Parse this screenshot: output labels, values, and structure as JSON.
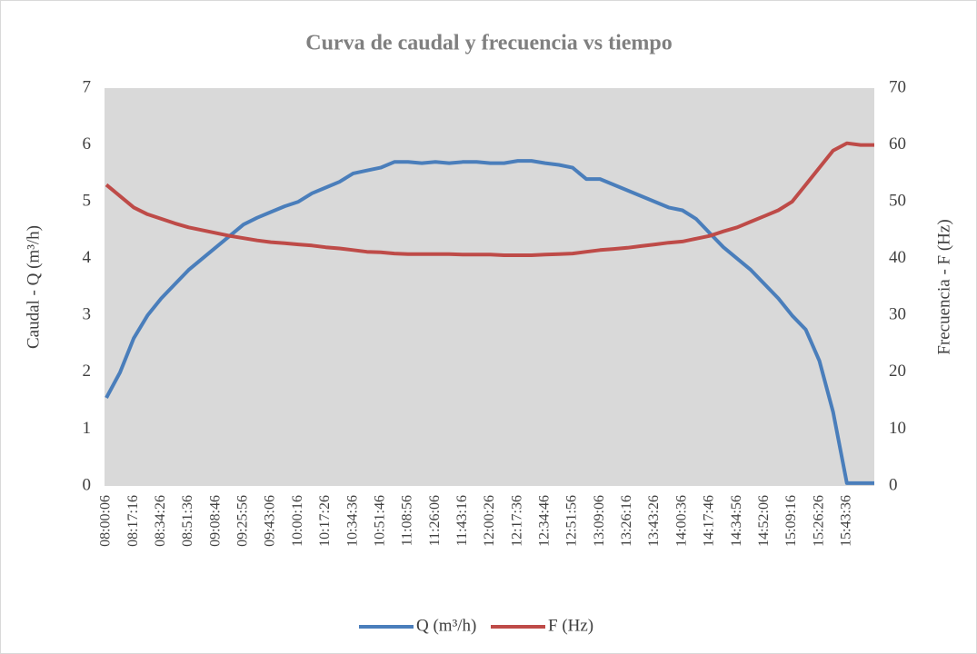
{
  "chart_data": {
    "type": "line",
    "title": "Curva de caudal  y frecuencia vs tiempo",
    "y_label": "Caudal - Q (m³/h)",
    "y2_label": "Frecuencia - F (Hz)",
    "categories": [
      "08:00:06",
      null,
      "08:17:16",
      null,
      "08:34:26",
      null,
      "08:51:36",
      null,
      "09:08:46",
      null,
      "09:25:56",
      null,
      "09:43:06",
      null,
      "10:00:16",
      null,
      "10:17:26",
      null,
      "10:34:36",
      null,
      "10:51:46",
      null,
      "11:08:56",
      null,
      "11:26:06",
      null,
      "11:43:16",
      null,
      "12:00:26",
      null,
      "12:17:36",
      null,
      "12:34:46",
      null,
      "12:51:56",
      null,
      "13:09:06",
      null,
      "13:26:16",
      null,
      "13:43:26",
      null,
      "14:00:36",
      null,
      "14:17:46",
      null,
      "14:34:56",
      null,
      "14:52:06",
      null,
      "15:09:16",
      null,
      "15:26:26",
      null,
      "15:43:36",
      null,
      null
    ],
    "series": [
      {
        "name": "Q (m³/h)",
        "color": "#4a7ebb",
        "values": [
          1.55,
          2.0,
          2.6,
          3.0,
          3.3,
          3.55,
          3.8,
          4.0,
          4.2,
          4.4,
          4.6,
          4.72,
          4.82,
          4.92,
          5.0,
          5.15,
          5.25,
          5.35,
          5.5,
          5.55,
          5.6,
          5.7,
          5.7,
          5.68,
          5.7,
          5.68,
          5.7,
          5.7,
          5.68,
          5.68,
          5.72,
          5.72,
          5.68,
          5.65,
          5.6,
          5.4,
          5.4,
          5.3,
          5.2,
          5.1,
          5.0,
          4.9,
          4.85,
          4.7,
          4.45,
          4.2,
          4.0,
          3.8,
          3.55,
          3.3,
          3.0,
          2.75,
          2.2,
          1.3,
          0.05,
          0.05,
          0.05
        ]
      },
      {
        "name": "F (Hz)",
        "color": "#be4b48",
        "axis": "y2",
        "values": [
          53,
          51,
          49,
          47.8,
          47,
          46.2,
          45.5,
          45,
          44.5,
          44,
          43.6,
          43.2,
          42.9,
          42.7,
          42.5,
          42.3,
          42,
          41.8,
          41.5,
          41.2,
          41.1,
          40.9,
          40.8,
          40.8,
          40.8,
          40.8,
          40.7,
          40.7,
          40.7,
          40.6,
          40.6,
          40.6,
          40.7,
          40.8,
          40.9,
          41.2,
          41.5,
          41.7,
          41.9,
          42.2,
          42.5,
          42.8,
          43,
          43.5,
          44,
          44.8,
          45.5,
          46.5,
          47.5,
          48.5,
          50,
          53,
          56,
          59,
          60.3,
          60,
          60
        ]
      }
    ],
    "ylim": [
      0,
      7
    ],
    "yticks": [
      0,
      1,
      2,
      3,
      4,
      5,
      6,
      7
    ],
    "y2lim": [
      0,
      70
    ],
    "y2ticks": [
      0,
      10,
      20,
      30,
      40,
      50,
      60,
      70
    ],
    "grid": false,
    "legend": "bottom",
    "plot_background": "#d9d9d9"
  }
}
